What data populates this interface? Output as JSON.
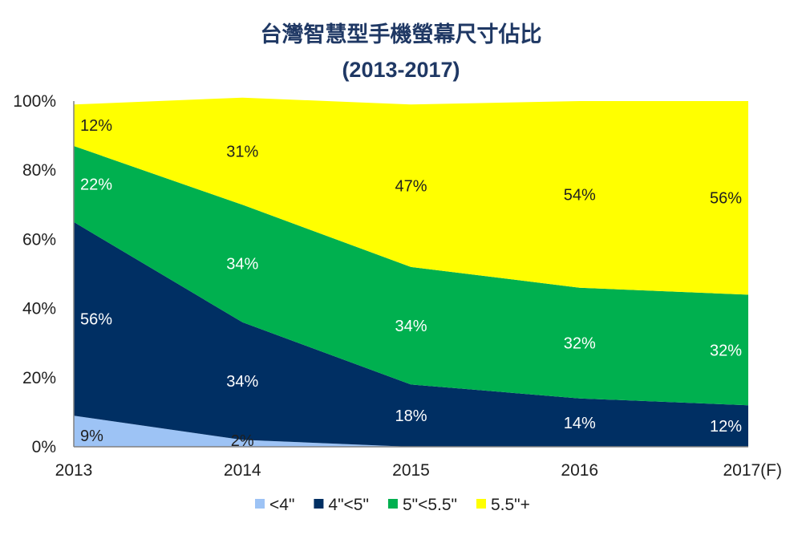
{
  "chart_data": {
    "type": "area",
    "stacked": true,
    "title": "台灣智慧型手機螢幕尺寸佔比",
    "subtitle": "(2013-2017)",
    "categories": [
      "2013",
      "2014",
      "2015",
      "2016",
      "2017(F)"
    ],
    "ylim": [
      0,
      100
    ],
    "yticks": [
      "0%",
      "20%",
      "40%",
      "60%",
      "80%",
      "100%"
    ],
    "grid": false,
    "legend_position": "bottom",
    "series": [
      {
        "name": "<4\"",
        "color": "#9dc3f5",
        "values": [
          9,
          2,
          0,
          0,
          0
        ],
        "labels": [
          "9%",
          "2%",
          "",
          "",
          ""
        ],
        "label_color": "#1f1f1f"
      },
      {
        "name": "4\"<5\"",
        "color": "#002f63",
        "values": [
          56,
          34,
          18,
          14,
          12
        ],
        "labels": [
          "56%",
          "34%",
          "18%",
          "14%",
          "12%"
        ],
        "label_color": "#ffffff"
      },
      {
        "name": "5\"<5.5\"",
        "color": "#00b04f",
        "values": [
          22,
          34,
          34,
          32,
          32
        ],
        "labels": [
          "22%",
          "34%",
          "34%",
          "32%",
          "32%"
        ],
        "label_color": "#ffffff"
      },
      {
        "name": "5.5\"+",
        "color": "#ffff00",
        "values": [
          12,
          31,
          47,
          54,
          56
        ],
        "labels": [
          "12%",
          "31%",
          "47%",
          "54%",
          "56%"
        ],
        "label_color": "#1f1f1f"
      }
    ]
  }
}
